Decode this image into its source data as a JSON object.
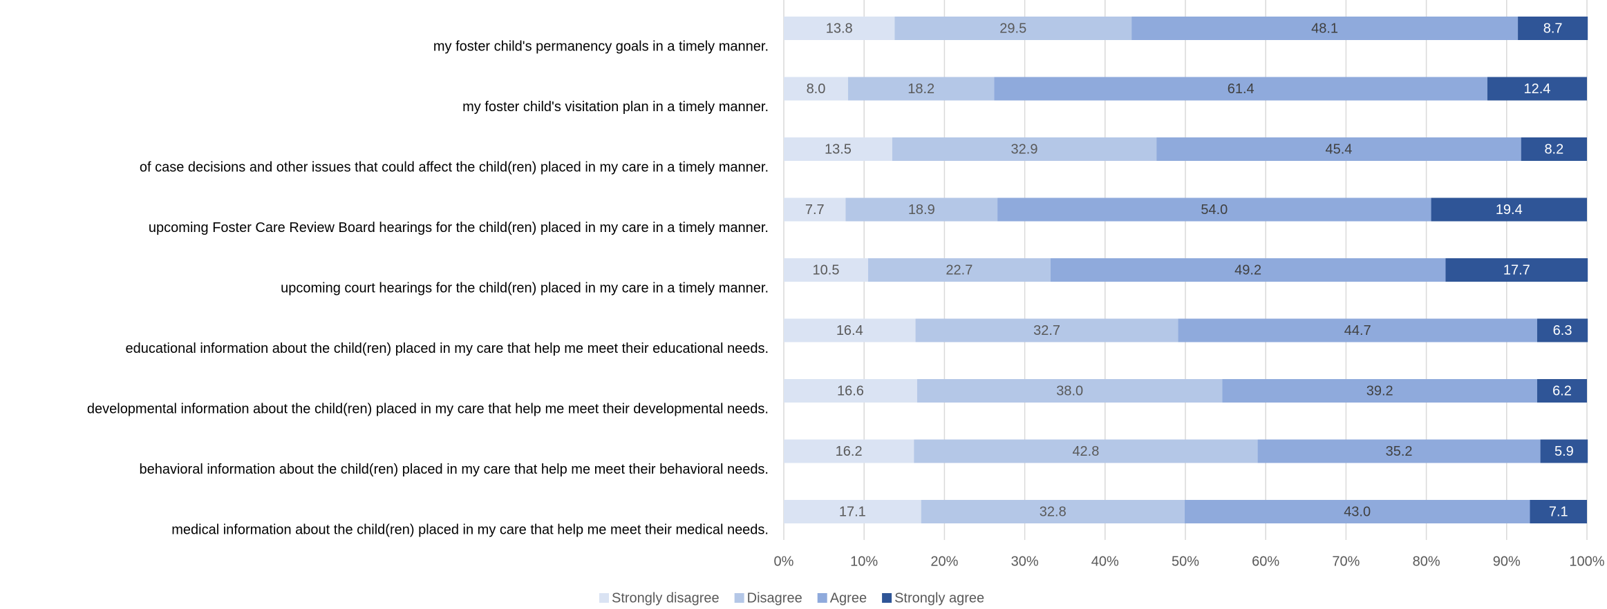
{
  "chart_data": {
    "type": "stacked-bar-horizontal",
    "categories": [
      "my foster child's permanency goals in a timely manner.",
      "my foster child's visitation plan in a timely manner.",
      "of case decisions and other issues that could affect the child(ren) placed in my care in a timely manner.",
      "upcoming Foster Care Review Board hearings for the child(ren) placed in my care in a timely manner.",
      "upcoming court hearings for the child(ren) placed in my care in a timely manner.",
      "educational information about the child(ren) placed in my care that help me meet their educational needs.",
      "developmental information about the child(ren) placed in my care that help me meet their developmental needs.",
      "behavioral information about the child(ren) placed in my care that help me meet their behavioral needs.",
      "medical information about the child(ren) placed in my care that help me meet their medical needs."
    ],
    "series": [
      {
        "name": "Strongly disagree",
        "color": "#dae3f3",
        "label_color": "#595959",
        "values": [
          13.8,
          8.0,
          13.5,
          7.7,
          10.5,
          16.4,
          16.6,
          16.2,
          17.1
        ],
        "value_labels": [
          "13.8",
          "8.0",
          "13.5",
          "7.7",
          "10.5",
          "16.4",
          "16.6",
          "16.2",
          "17.1"
        ]
      },
      {
        "name": "Disagree",
        "color": "#b4c7e7",
        "label_color": "#595959",
        "values": [
          29.5,
          18.2,
          32.9,
          18.9,
          22.7,
          32.7,
          38.0,
          42.8,
          32.8
        ],
        "value_labels": [
          "29.5",
          "18.2",
          "32.9",
          "18.9",
          "22.7",
          "32.7",
          "38.0",
          "42.8",
          "32.8"
        ]
      },
      {
        "name": "Agree",
        "color": "#8faadc",
        "label_color": "#404040",
        "values": [
          48.1,
          61.4,
          45.4,
          54.0,
          49.2,
          44.7,
          39.2,
          35.2,
          43.0
        ],
        "value_labels": [
          "48.1",
          "61.4",
          "45.4",
          "54.0",
          "49.2",
          "44.7",
          "39.2",
          "35.2",
          "43.0"
        ]
      },
      {
        "name": "Strongly agree",
        "color": "#2f5597",
        "label_color": "#ffffff",
        "values": [
          8.7,
          12.4,
          8.2,
          19.4,
          17.7,
          6.3,
          6.2,
          5.9,
          7.1
        ],
        "value_labels": [
          "8.7",
          "12.4",
          "8.2",
          "19.4",
          "17.7",
          "6.3",
          "6.2",
          "5.9",
          "7.1"
        ]
      }
    ],
    "xlim": [
      0,
      100
    ],
    "xticks": [
      {
        "value": 0,
        "label": "0%"
      },
      {
        "value": 10,
        "label": "10%"
      },
      {
        "value": 20,
        "label": "20%"
      },
      {
        "value": 30,
        "label": "30%"
      },
      {
        "value": 40,
        "label": "40%"
      },
      {
        "value": 50,
        "label": "50%"
      },
      {
        "value": 60,
        "label": "60%"
      },
      {
        "value": 70,
        "label": "70%"
      },
      {
        "value": 80,
        "label": "80%"
      },
      {
        "value": 90,
        "label": "90%"
      },
      {
        "value": 100,
        "label": "100%"
      }
    ],
    "grid": true,
    "legend": "bottom"
  }
}
